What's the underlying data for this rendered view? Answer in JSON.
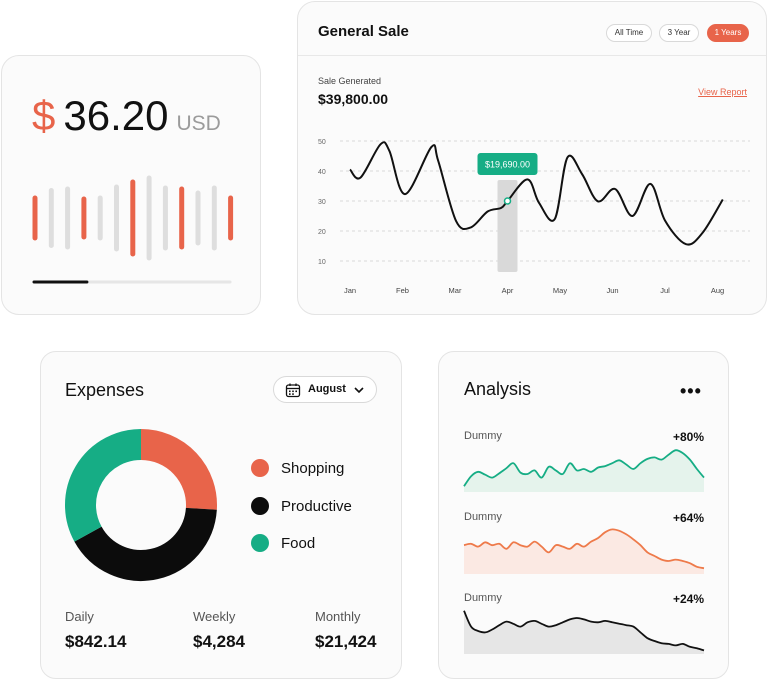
{
  "price_card": {
    "currency_symbol": "$",
    "amount": "36.20",
    "currency": "USD",
    "progress": 0.27,
    "accent": "#e8644a"
  },
  "general_sale": {
    "title": "General Sale",
    "filters": [
      "All Time",
      "3 Year",
      "1 Years"
    ],
    "active_filter": "1 Years",
    "label": "Sale Generated",
    "value": "$39,800.00",
    "view_report": "View Report",
    "tooltip": "$19,690.00"
  },
  "chart_data": {
    "type": "line",
    "categories": [
      "Jan",
      "Feb",
      "Mar",
      "Apr",
      "May",
      "Jun",
      "Jul",
      "Aug"
    ],
    "y_ticks": [
      50,
      40,
      30,
      20,
      10
    ],
    "ylim": [
      10,
      50
    ],
    "x": [
      0,
      0.2,
      0.58,
      0.75,
      1.05,
      1.55,
      1.68,
      2.02,
      2.3,
      2.62,
      2.88,
      3.0,
      3.38,
      3.6,
      3.9,
      4.14,
      4.42,
      4.72,
      5.05,
      5.38,
      5.72,
      6.0,
      6.4,
      6.72,
      7.1
    ],
    "values": [
      40.5,
      37.8,
      48.9,
      46.7,
      32.3,
      48.0,
      43.4,
      23.3,
      21.2,
      26.5,
      27.7,
      30.0,
      37.2,
      29.4,
      24.0,
      44.5,
      39.0,
      29.9,
      34.0,
      25.0,
      35.7,
      23.5,
      15.6,
      19.5,
      30.5
    ],
    "highlight": {
      "category": "Apr",
      "value": 30.0,
      "label": "$19,690.00"
    },
    "title": "General Sale",
    "grid": true
  },
  "expenses": {
    "title": "Expenses",
    "month": "August",
    "segments": [
      {
        "name": "Shopping",
        "value": 26,
        "color": "#e8644a"
      },
      {
        "name": "Productive",
        "value": 41,
        "color": "#0c0c0c"
      },
      {
        "name": "Food",
        "value": 33,
        "color": "#16ad85"
      }
    ],
    "stats": [
      {
        "label": "Daily",
        "value": "$842.14"
      },
      {
        "label": "Weekly",
        "value": "$4,284"
      },
      {
        "label": "Monthly",
        "value": "$21,424"
      }
    ]
  },
  "analysis": {
    "title": "Analysis",
    "more": "•••",
    "items": [
      {
        "label": "Dummy",
        "change": "+80%",
        "color": "#16ad85",
        "fill": "#e5f3ec",
        "values": [
          8,
          22,
          28,
          24,
          20,
          26,
          33,
          40,
          27,
          25,
          30,
          20,
          35,
          30,
          25,
          40,
          30,
          32,
          28,
          34,
          36,
          40,
          44,
          38,
          32,
          40,
          46,
          48,
          45,
          52,
          58,
          54,
          45,
          32,
          20
        ]
      },
      {
        "label": "Dummy",
        "change": "+64%",
        "color": "#ee7a4a",
        "fill": "#fbe9e3",
        "values": [
          40,
          42,
          38,
          44,
          40,
          42,
          35,
          44,
          40,
          38,
          45,
          38,
          30,
          40,
          38,
          35,
          42,
          38,
          45,
          50,
          58,
          62,
          60,
          55,
          48,
          40,
          30,
          25,
          20,
          18,
          20,
          18,
          15,
          10,
          8
        ]
      },
      {
        "label": "Dummy",
        "change": "+24%",
        "color": "#111111",
        "fill": "#e6e6e6",
        "values": [
          60,
          38,
          32,
          30,
          34,
          40,
          45,
          42,
          38,
          44,
          46,
          42,
          38,
          40,
          44,
          48,
          50,
          48,
          45,
          44,
          46,
          44,
          42,
          40,
          38,
          30,
          22,
          18,
          15,
          14,
          12,
          14,
          10,
          8,
          5
        ]
      }
    ]
  }
}
